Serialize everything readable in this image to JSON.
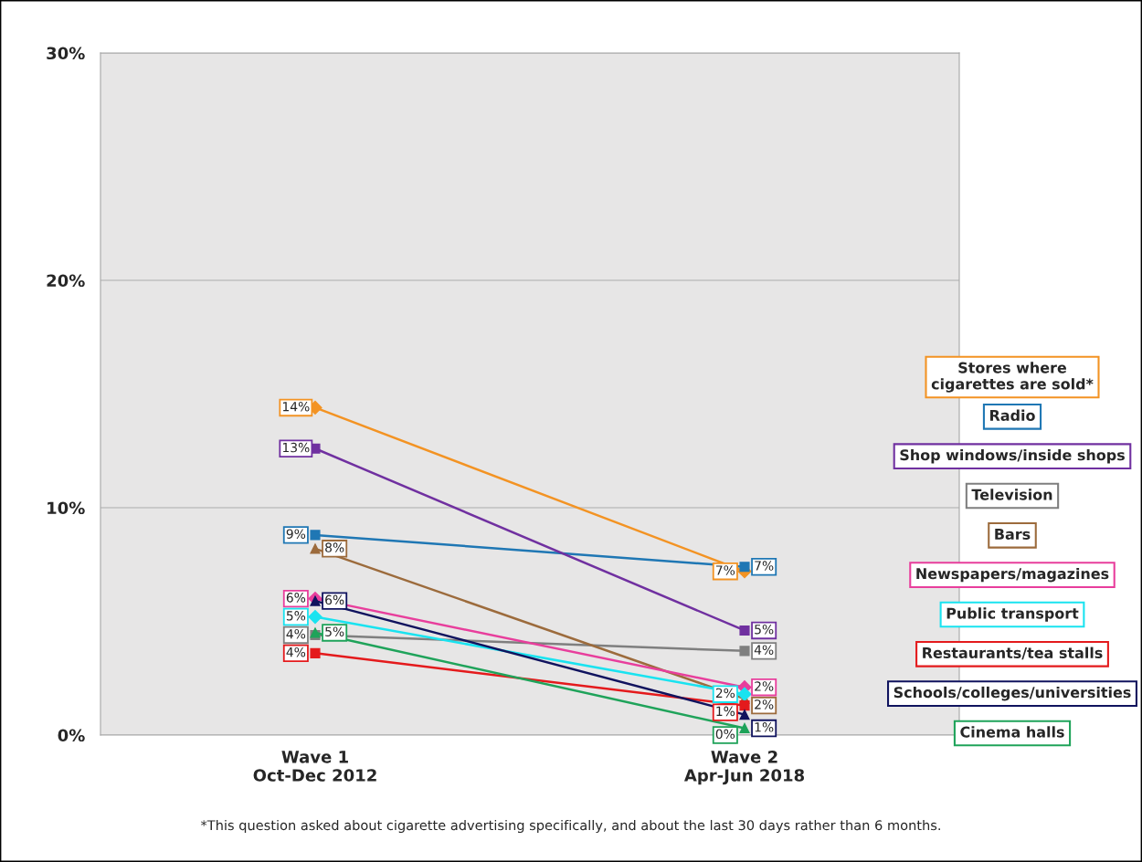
{
  "chart_data": {
    "type": "line",
    "categories": [
      "Wave 1\nOct-Dec 2012",
      "Wave 2\nApr-Jun 2018"
    ],
    "series": [
      {
        "name": "Stores where\ncigarettes are sold*",
        "color": "#f39323",
        "marker": "diamond",
        "values": [
          14.4,
          7.2
        ],
        "value_labels": [
          "14%",
          "7%"
        ]
      },
      {
        "name": "Radio",
        "color": "#1f77b4",
        "marker": "square",
        "values": [
          8.8,
          7.4
        ],
        "value_labels": [
          "9%",
          "7%"
        ]
      },
      {
        "name": "Shop windows/inside shops",
        "color": "#7030a0",
        "marker": "square",
        "values": [
          12.6,
          4.6
        ],
        "value_labels": [
          "13%",
          "5%"
        ]
      },
      {
        "name": "Television",
        "color": "#7f7f7f",
        "marker": "square",
        "values": [
          4.4,
          3.7
        ],
        "value_labels": [
          "4%",
          "4%"
        ]
      },
      {
        "name": "Bars",
        "color": "#9c6b3c",
        "marker": "triangle",
        "values": [
          8.2,
          1.6
        ],
        "value_labels": [
          "8%",
          "2%"
        ]
      },
      {
        "name": "Newspapers/magazines",
        "color": "#e83e9c",
        "marker": "diamond",
        "values": [
          6.0,
          2.1
        ],
        "value_labels": [
          "6%",
          "2%"
        ]
      },
      {
        "name": "Public transport",
        "color": "#19e3f0",
        "marker": "diamond",
        "values": [
          5.2,
          1.8
        ],
        "value_labels": [
          "5%",
          "2%"
        ]
      },
      {
        "name": "Restaurants/tea stalls",
        "color": "#e41a1c",
        "marker": "square",
        "values": [
          3.6,
          1.3
        ],
        "value_labels": [
          "4%",
          "1%"
        ]
      },
      {
        "name": "Schools/colleges/universities",
        "color": "#10135e",
        "marker": "triangle",
        "values": [
          5.9,
          0.9
        ],
        "value_labels": [
          "6%",
          "1%"
        ]
      },
      {
        "name": "Cinema halls",
        "color": "#1fa35a",
        "marker": "triangle",
        "values": [
          4.5,
          0.3
        ],
        "value_labels": [
          "5%",
          "0%"
        ]
      }
    ],
    "ylim": [
      0,
      30
    ],
    "yticks": [
      {
        "value": 0,
        "label": "0%"
      },
      {
        "value": 10,
        "label": "10%"
      },
      {
        "value": 20,
        "label": "20%"
      },
      {
        "value": 30,
        "label": "30%"
      }
    ],
    "grid": "y",
    "legend": "right",
    "annotations": [
      "*This question asked about cigarette advertising specifically, and about the last 30 days rather than 6 months."
    ]
  }
}
